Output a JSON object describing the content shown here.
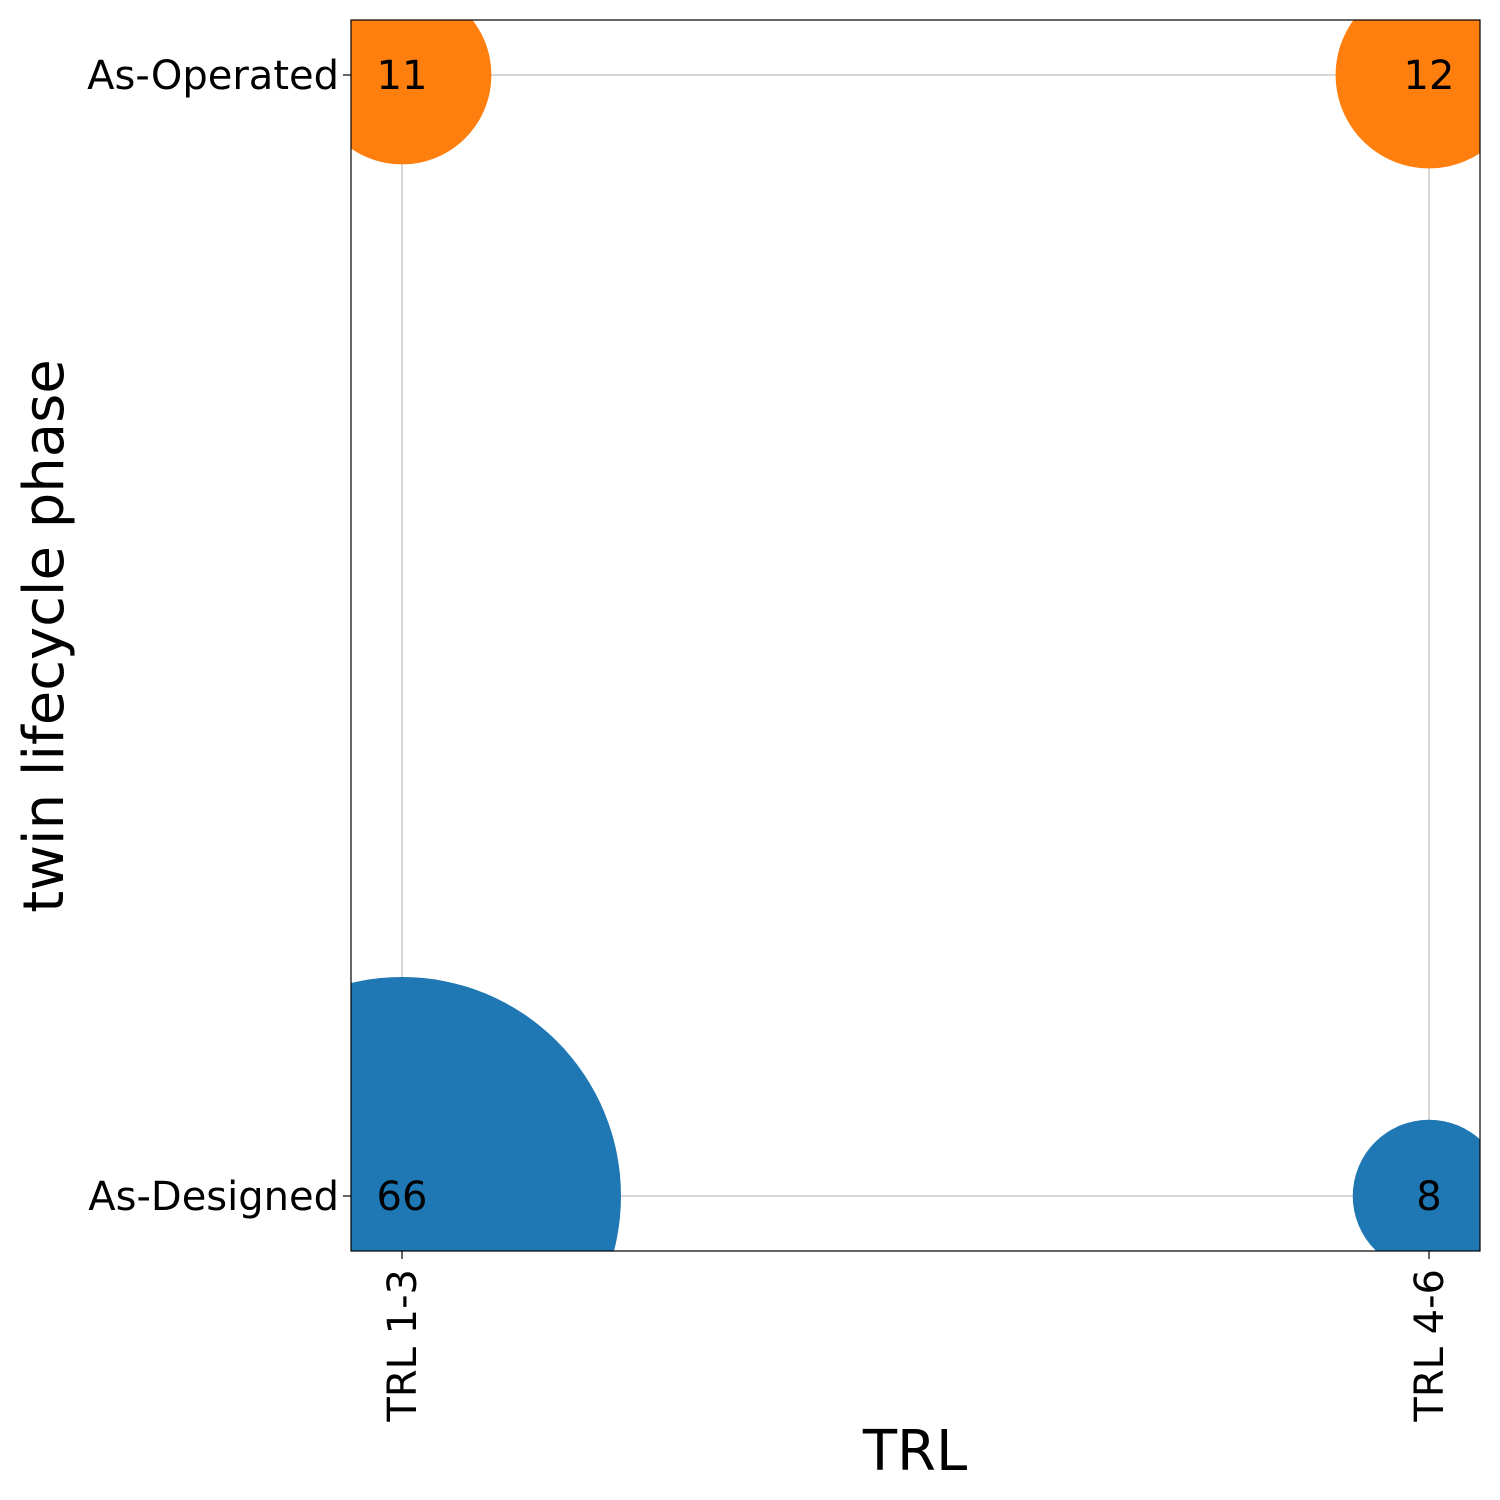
{
  "chart_data": {
    "type": "scatter",
    "xlabel": "TRL",
    "ylabel": "twin lifecycle phase",
    "x_categories": [
      "TRL 1-3",
      "TRL 4-6"
    ],
    "y_categories": [
      "As-Designed",
      "As-Operated"
    ],
    "grid": true,
    "legend": "none",
    "points": [
      {
        "x": "TRL 1-3",
        "y": "As-Designed",
        "value": 66,
        "label": "66",
        "color": "#1f77b4"
      },
      {
        "x": "TRL 4-6",
        "y": "As-Designed",
        "value": 8,
        "label": "8",
        "color": "#1f77b4"
      },
      {
        "x": "TRL 1-3",
        "y": "As-Operated",
        "value": 11,
        "label": "11",
        "color": "#ff7f0e"
      },
      {
        "x": "TRL 4-6",
        "y": "As-Operated",
        "value": 12,
        "label": "12",
        "color": "#ff7f0e"
      }
    ]
  }
}
